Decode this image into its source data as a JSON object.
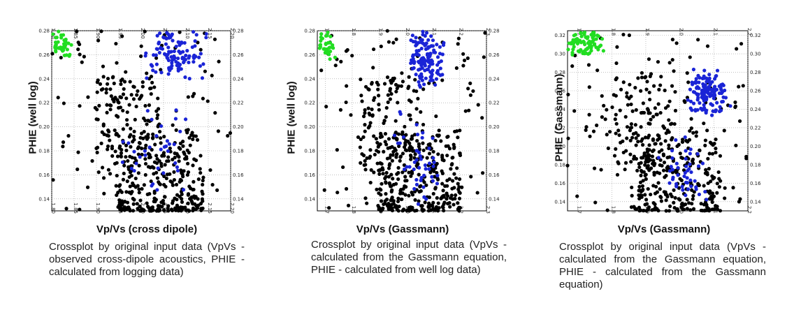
{
  "figures": [
    {
      "caption": "Crossplot by original input data (VpVs - observed cross-dipole acoustics, PHIE - calculated from logging data)"
    },
    {
      "caption": "Crossplot by  original input data (VpVs - calculated from the Gassmann equation, PHIE - calculated from well log data)"
    },
    {
      "caption": "Crossplot by original input data (VpVs - calculated from the Gassmann equation, PHIE - calculated from the Gassmann equation)"
    }
  ],
  "colors": {
    "green": "#22dd22",
    "blue": "#1a24d6",
    "black": "#000000",
    "grid": "#999999"
  },
  "chart_data": [
    {
      "type": "scatter",
      "xlabel": "Vp/Vs (cross dipole)",
      "ylabel": "PHIE (well log)",
      "xlim": [
        1.8,
        2.2
      ],
      "ylim": [
        0.13,
        0.28
      ],
      "x_ticks": [
        "1.80",
        "1.85",
        "1.90",
        "1.95",
        "2.00",
        "2.05",
        "2.10",
        "2.15",
        "2.20"
      ],
      "y_ticks": [
        "0.14",
        "0.16",
        "0.18",
        "0.20",
        "0.22",
        "0.24",
        "0.26",
        "0.28"
      ],
      "grid": true,
      "series": [
        {
          "color": "green",
          "n": 40,
          "x_range": [
            1.8,
            1.845
          ],
          "y_range": [
            0.255,
            0.282
          ]
        },
        {
          "color": "blue",
          "n": 110,
          "x_range": [
            2.0,
            2.16
          ],
          "y_range": [
            0.235,
            0.282
          ]
        },
        {
          "color": "blue",
          "n": 35,
          "x_range": [
            1.93,
            2.12
          ],
          "y_range": [
            0.135,
            0.22
          ]
        },
        {
          "color": "black",
          "n": 520,
          "x_range": [
            1.81,
            2.2
          ],
          "y_range": [
            0.13,
            0.28
          ]
        }
      ]
    },
    {
      "type": "scatter",
      "xlabel": "Vp/Vs (Gassmann)",
      "ylabel": "PHIE (well log)",
      "xlim": [
        1.67,
        2.3
      ],
      "ylim": [
        0.13,
        0.28
      ],
      "x_ticks": [
        "1.7",
        "1.8",
        "1.9",
        "2.0",
        "2.1",
        "2.2",
        "2.3"
      ],
      "y_ticks": [
        "0.14",
        "0.16",
        "0.18",
        "0.20",
        "0.22",
        "0.24",
        "0.26",
        "0.28"
      ],
      "grid": true,
      "series": [
        {
          "color": "green",
          "n": 35,
          "x_range": [
            1.67,
            1.74
          ],
          "y_range": [
            0.255,
            0.282
          ]
        },
        {
          "color": "blue",
          "n": 130,
          "x_range": [
            2.0,
            2.15
          ],
          "y_range": [
            0.23,
            0.282
          ]
        },
        {
          "color": "blue",
          "n": 45,
          "x_range": [
            1.95,
            2.15
          ],
          "y_range": [
            0.13,
            0.22
          ]
        },
        {
          "color": "black",
          "n": 520,
          "x_range": [
            1.7,
            2.3
          ],
          "y_range": [
            0.13,
            0.28
          ]
        }
      ]
    },
    {
      "type": "scatter",
      "xlabel": "Vp/Vs (Gassmann)",
      "ylabel": "PHIE (Gassmann)",
      "xlim": [
        1.67,
        2.2
      ],
      "ylim": [
        0.13,
        0.325
      ],
      "x_ticks": [
        "1.7",
        "1.8",
        "1.9",
        "2.0",
        "2.1",
        "2.2"
      ],
      "y_ticks": [
        "0.14",
        "0.16",
        "0.18",
        "0.20",
        "0.22",
        "0.24",
        "0.26",
        "0.28",
        "0.30",
        "0.32"
      ],
      "grid": true,
      "series": [
        {
          "color": "green",
          "n": 80,
          "x_range": [
            1.67,
            1.78
          ],
          "y_range": [
            0.295,
            0.325
          ]
        },
        {
          "color": "blue",
          "n": 130,
          "x_range": [
            2.02,
            2.15
          ],
          "y_range": [
            0.23,
            0.285
          ]
        },
        {
          "color": "blue",
          "n": 45,
          "x_range": [
            1.93,
            2.1
          ],
          "y_range": [
            0.13,
            0.22
          ]
        },
        {
          "color": "black",
          "n": 480,
          "x_range": [
            1.68,
            2.2
          ],
          "y_range": [
            0.13,
            0.325
          ]
        }
      ]
    }
  ]
}
